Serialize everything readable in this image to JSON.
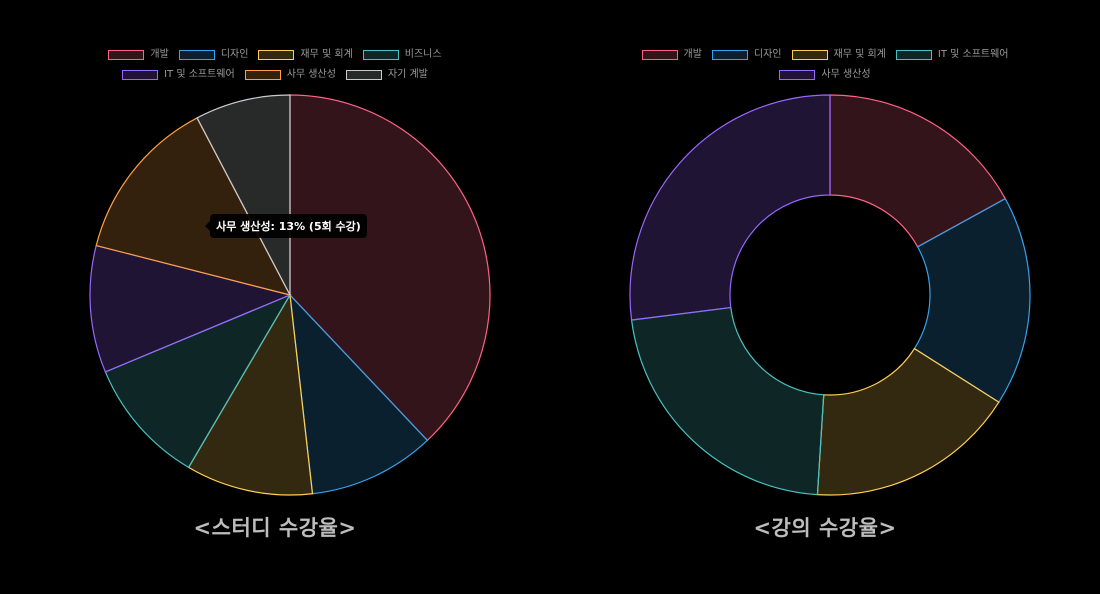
{
  "chart_data": [
    {
      "type": "pie",
      "title": "<스터디 수강율>",
      "categories": [
        "개발",
        "디자인",
        "재무 및 회계",
        "비즈니스",
        "IT 및 소프트웨어",
        "사무 생산성",
        "자기 계발"
      ],
      "values": [
        37,
        10,
        10,
        10,
        10,
        13,
        7.5
      ],
      "tooltip": "사무 생산성: 13% (5회 수강)",
      "legend": "top",
      "colors": [
        "#ff6384",
        "#36a2eb",
        "#ffcd56",
        "#4bc0c0",
        "#9966ff",
        "#ff9f40",
        "#c9cbcf"
      ]
    },
    {
      "type": "pie",
      "title": "<강의 수강율>",
      "categories": [
        "개발",
        "디자인",
        "재무 및 회계",
        "IT 및 소프트웨어",
        "사무 생산성"
      ],
      "values": [
        17,
        17,
        17,
        22,
        27
      ],
      "donut": true,
      "legend": "top",
      "colors": [
        "#ff6384",
        "#36a2eb",
        "#ffcd56",
        "#4bc0c0",
        "#9966ff"
      ]
    }
  ]
}
